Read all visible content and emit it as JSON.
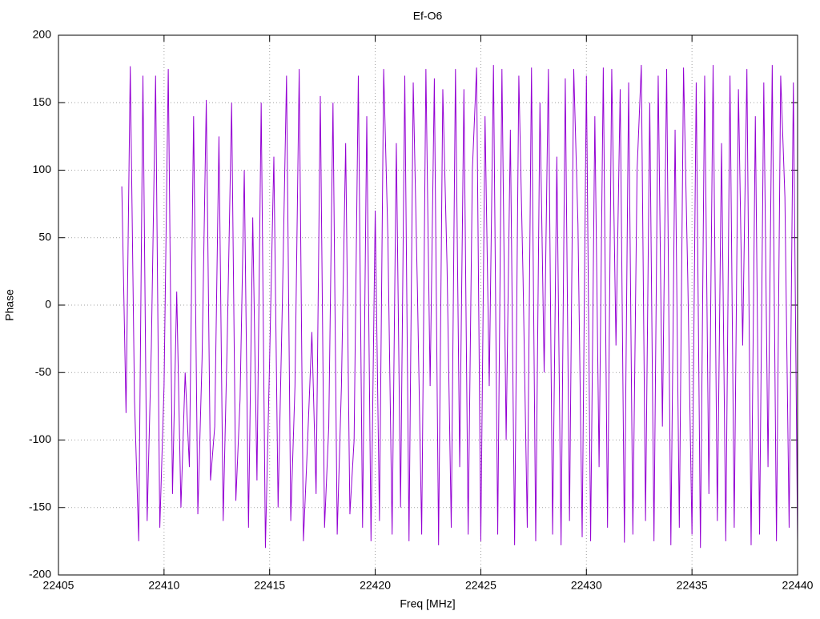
{
  "chart_data": {
    "type": "line",
    "title": "Ef-O6",
    "x_label": "Freq [MHz]",
    "y_label": "Phase",
    "color": "#9400d3",
    "grid": true,
    "xlim": [
      22405,
      22440
    ],
    "ylim": [
      -200,
      200
    ],
    "xticks": [
      22405,
      22410,
      22415,
      22420,
      22425,
      22430,
      22435,
      22440
    ],
    "yticks": [
      -200,
      -150,
      -100,
      -50,
      0,
      50,
      100,
      150,
      200
    ],
    "x": [
      22408,
      22408.2,
      22408.4,
      22408.6,
      22408.8,
      22409,
      22409.2,
      22409.4,
      22409.6,
      22409.8,
      22410,
      22410.2,
      22410.4,
      22410.6,
      22410.8,
      22411,
      22411.2,
      22411.4,
      22411.6,
      22411.8,
      22412,
      22412.2,
      22412.4,
      22412.6,
      22412.8,
      22413,
      22413.2,
      22413.4,
      22413.6,
      22413.8,
      22414,
      22414.2,
      22414.4,
      22414.6,
      22414.8,
      22415,
      22415.2,
      22415.4,
      22415.6,
      22415.8,
      22416,
      22416.2,
      22416.4,
      22416.6,
      22416.8,
      22417,
      22417.2,
      22417.4,
      22417.6,
      22417.8,
      22418,
      22418.2,
      22418.4,
      22418.6,
      22418.8,
      22419,
      22419.2,
      22419.4,
      22419.6,
      22419.8,
      22420,
      22420.2,
      22420.4,
      22420.6,
      22420.8,
      22421,
      22421.2,
      22421.4,
      22421.6,
      22421.8,
      22422,
      22422.2,
      22422.4,
      22422.6,
      22422.8,
      22423,
      22423.2,
      22423.4,
      22423.6,
      22423.8,
      22424,
      22424.2,
      22424.4,
      22424.6,
      22424.8,
      22425,
      22425.2,
      22425.4,
      22425.6,
      22425.8,
      22426,
      22426.2,
      22426.4,
      22426.6,
      22426.8,
      22427,
      22427.2,
      22427.4,
      22427.6,
      22427.8,
      22428,
      22428.2,
      22428.4,
      22428.6,
      22428.8,
      22429,
      22429.2,
      22429.4,
      22429.6,
      22429.8,
      22430,
      22430.2,
      22430.4,
      22430.6,
      22430.8,
      22431,
      22431.2,
      22431.4,
      22431.6,
      22431.8,
      22432,
      22432.2,
      22432.4,
      22432.6,
      22432.8,
      22433,
      22433.2,
      22433.4,
      22433.6,
      22433.8,
      22434,
      22434.2,
      22434.4,
      22434.6,
      22434.8,
      22435,
      22435.2,
      22435.4,
      22435.6,
      22435.8,
      22436,
      22436.2,
      22436.4,
      22436.6,
      22436.8,
      22437,
      22437.2,
      22437.4,
      22437.6,
      22437.8,
      22438,
      22438.2,
      22438.4,
      22438.6,
      22438.8,
      22439,
      22439.2,
      22439.4,
      22439.6,
      22439.8,
      22440
    ],
    "values": [
      88,
      -80,
      177,
      -70,
      -175,
      170,
      -160,
      -30,
      170,
      -165,
      -60,
      175,
      -140,
      10,
      -150,
      -50,
      -120,
      140,
      -155,
      -40,
      152,
      -130,
      -90,
      125,
      -160,
      -20,
      150,
      -145,
      -70,
      100,
      -165,
      65,
      -130,
      150,
      -180,
      -40,
      110,
      -150,
      0,
      170,
      -160,
      -60,
      175,
      -175,
      -100,
      -20,
      -140,
      155,
      -165,
      -90,
      150,
      -170,
      -60,
      120,
      -155,
      -100,
      170,
      -165,
      140,
      -175,
      70,
      -160,
      175,
      50,
      -170,
      120,
      -150,
      170,
      -175,
      165,
      10,
      -170,
      175,
      -60,
      168,
      -178,
      160,
      30,
      -165,
      175,
      -120,
      160,
      -170,
      100,
      176,
      -175,
      140,
      -60,
      178,
      -170,
      175,
      -100,
      130,
      -178,
      170,
      20,
      -165,
      176,
      -175,
      150,
      -50,
      175,
      -170,
      110,
      -178,
      168,
      -160,
      175,
      60,
      -172,
      170,
      -175,
      140,
      -120,
      176,
      -165,
      175,
      -30,
      160,
      -176,
      165,
      -170,
      100,
      178,
      -160,
      150,
      -175,
      170,
      -90,
      175,
      -178,
      130,
      -165,
      176,
      20,
      -170,
      165,
      -180,
      170,
      -140,
      178,
      -160,
      120,
      -175,
      170,
      -165,
      160,
      -30,
      175,
      -178,
      140,
      -170,
      165,
      -120,
      178,
      -175,
      170,
      80,
      -165,
      165,
      -175
    ]
  }
}
